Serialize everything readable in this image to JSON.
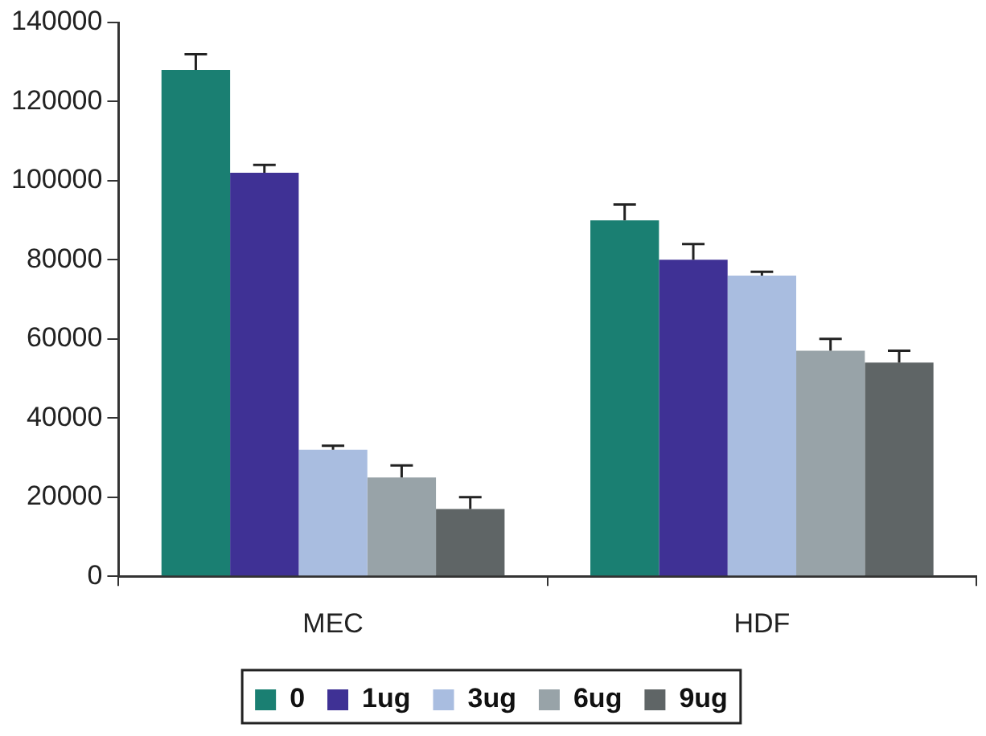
{
  "chart_data": {
    "type": "bar",
    "categories": [
      "MEC",
      "HDF"
    ],
    "series": [
      {
        "name": "0",
        "color": "#1a7f72",
        "values": [
          128000,
          90000
        ],
        "errors": [
          [
            128000,
            132000
          ],
          [
            90000,
            94000
          ]
        ]
      },
      {
        "name": "1ug",
        "color": "#3f3195",
        "values": [
          102000,
          80000
        ],
        "errors": [
          [
            102000,
            104000
          ],
          [
            80000,
            84000
          ]
        ]
      },
      {
        "name": "3ug",
        "color": "#a9bde0",
        "values": [
          32000,
          76000
        ],
        "errors": [
          [
            32000,
            33000
          ],
          [
            76000,
            77000
          ]
        ]
      },
      {
        "name": "6ug",
        "color": "#98a3a8",
        "values": [
          25000,
          57000
        ],
        "errors": [
          [
            25000,
            28000
          ],
          [
            57000,
            60000
          ]
        ]
      },
      {
        "name": "9ug",
        "color": "#5f6566",
        "values": [
          17000,
          54000
        ],
        "errors": [
          [
            17000,
            20000
          ],
          [
            54000,
            57000
          ]
        ]
      }
    ],
    "ylim": [
      0,
      140000
    ],
    "yticks": [
      0,
      20000,
      40000,
      60000,
      80000,
      100000,
      120000,
      140000
    ],
    "grid": false,
    "legend": "bottom"
  }
}
